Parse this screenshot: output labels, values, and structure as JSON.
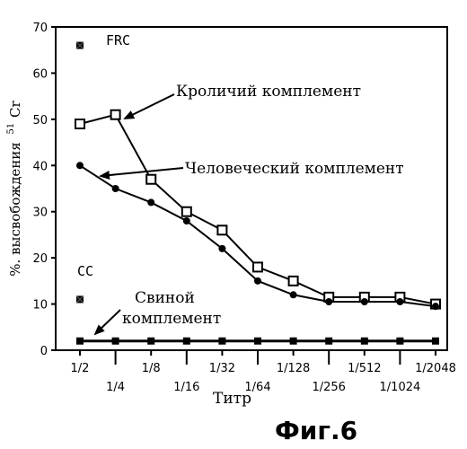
{
  "chart_data": {
    "type": "line",
    "title": "",
    "xlabel": "Титр",
    "ylabel": "%. высвобождения",
    "ylabel_sup": "51",
    "ylabel_unit": "Cr",
    "ylim": [
      0,
      70
    ],
    "y_ticks": [
      0,
      10,
      20,
      30,
      40,
      50,
      60,
      70
    ],
    "categories": [
      "1/2",
      "1/4",
      "1/8",
      "1/16",
      "1/32",
      "1/64",
      "1/128",
      "1/256",
      "1/512",
      "1/1024",
      "1/2048"
    ],
    "series": [
      {
        "name": "Кроличий комплемент",
        "marker": "square-open",
        "values": [
          49,
          51,
          37,
          30,
          26,
          18,
          15,
          11.5,
          11.5,
          11.5,
          10
        ]
      },
      {
        "name": "Человеческий комплемент",
        "marker": "circle-filled",
        "values": [
          40,
          35,
          32,
          28,
          22,
          15,
          12,
          10.5,
          10.5,
          10.5,
          9.5
        ]
      },
      {
        "name": "Свиной комплемент",
        "marker": "square-filled",
        "values": [
          2,
          2,
          2,
          2,
          2,
          2,
          2,
          2,
          2,
          2,
          2
        ]
      }
    ],
    "controls": [
      {
        "label": "FRC",
        "value": 66
      },
      {
        "label": "CC",
        "value": 11
      }
    ],
    "annotations": {
      "rabbit": "Кроличий комплемент",
      "human": "Человеческий комплемент",
      "pig_line1": "Свиной",
      "pig_line2": "комплемент"
    },
    "figure_label": "Фиг.6"
  }
}
